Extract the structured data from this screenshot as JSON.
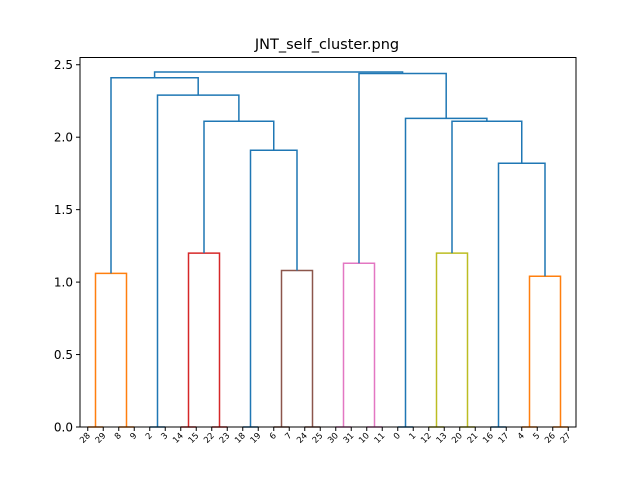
{
  "chart_data": {
    "type": "dendrogram",
    "title": "JNT_self_cluster.png",
    "xlabel": "",
    "ylabel": "",
    "ylim": [
      0,
      2.55
    ],
    "yticks": [
      0.0,
      0.5,
      1.0,
      1.5,
      2.0,
      2.5
    ],
    "ytick_labels": [
      "0.0",
      "0.5",
      "1.0",
      "1.5",
      "2.0",
      "2.5"
    ],
    "leaves": [
      "28",
      "29",
      "8",
      "9",
      "2",
      "3",
      "14",
      "15",
      "22",
      "23",
      "18",
      "19",
      "6",
      "7",
      "24",
      "25",
      "30",
      "31",
      "10",
      "11",
      "0",
      "1",
      "12",
      "13",
      "20",
      "21",
      "16",
      "17",
      "4",
      "5",
      "26",
      "27"
    ],
    "colors": {
      "above_threshold": "#1f77b4",
      "orange": "#ff7f0e",
      "red": "#d62728",
      "brown": "#8c564b",
      "pink": "#e377c2",
      "olive": "#bcbd22"
    },
    "links": [
      {
        "span": [
          0.0,
          1.0
        ],
        "heights": [
          0.0,
          0.0
        ],
        "height": 0.0,
        "color": "orange"
      },
      {
        "span": [
          2.0,
          3.0
        ],
        "heights": [
          0.0,
          0.0
        ],
        "height": 0.0,
        "color": "orange"
      },
      {
        "span": [
          0.5,
          2.5
        ],
        "heights": [
          0.0,
          0.0
        ],
        "height": 1.06,
        "color": "orange"
      },
      {
        "span": [
          4.0,
          5.0
        ],
        "heights": [
          0.0,
          0.0
        ],
        "height": 0.0,
        "color": "above_threshold"
      },
      {
        "span": [
          6.0,
          7.0
        ],
        "heights": [
          0.0,
          0.0
        ],
        "height": 0.0,
        "color": "red"
      },
      {
        "span": [
          8.0,
          9.0
        ],
        "heights": [
          0.0,
          0.0
        ],
        "height": 0.0,
        "color": "red"
      },
      {
        "span": [
          6.5,
          8.5
        ],
        "heights": [
          0.0,
          0.0
        ],
        "height": 1.2,
        "color": "red"
      },
      {
        "span": [
          10.0,
          11.0
        ],
        "heights": [
          0.0,
          0.0
        ],
        "height": 0.0,
        "color": "above_threshold"
      },
      {
        "span": [
          12.0,
          13.0
        ],
        "heights": [
          0.0,
          0.0
        ],
        "height": 0.0,
        "color": "brown"
      },
      {
        "span": [
          14.0,
          15.0
        ],
        "heights": [
          0.0,
          0.0
        ],
        "height": 0.0,
        "color": "brown"
      },
      {
        "span": [
          12.5,
          14.5
        ],
        "heights": [
          0.0,
          0.0
        ],
        "height": 1.08,
        "color": "brown"
      },
      {
        "span": [
          10.5,
          13.5
        ],
        "heights": [
          0.0,
          1.08
        ],
        "height": 1.91,
        "color": "above_threshold"
      },
      {
        "span": [
          7.5,
          12.0
        ],
        "heights": [
          1.2,
          1.91
        ],
        "height": 2.11,
        "color": "above_threshold"
      },
      {
        "span": [
          4.5,
          9.75
        ],
        "heights": [
          0.0,
          2.11
        ],
        "height": 2.29,
        "color": "above_threshold"
      },
      {
        "span": [
          1.5,
          7.125
        ],
        "heights": [
          1.06,
          2.29
        ],
        "height": 2.41,
        "color": "above_threshold"
      },
      {
        "span": [
          16.0,
          17.0
        ],
        "heights": [
          0.0,
          0.0
        ],
        "height": 0.0,
        "color": "pink"
      },
      {
        "span": [
          18.0,
          19.0
        ],
        "heights": [
          0.0,
          0.0
        ],
        "height": 0.0,
        "color": "pink"
      },
      {
        "span": [
          16.5,
          18.5
        ],
        "heights": [
          0.0,
          0.0
        ],
        "height": 1.13,
        "color": "pink"
      },
      {
        "span": [
          20.0,
          21.0
        ],
        "heights": [
          0.0,
          0.0
        ],
        "height": 0.0,
        "color": "above_threshold"
      },
      {
        "span": [
          22.0,
          23.0
        ],
        "heights": [
          0.0,
          0.0
        ],
        "height": 0.0,
        "color": "olive"
      },
      {
        "span": [
          24.0,
          25.0
        ],
        "heights": [
          0.0,
          0.0
        ],
        "height": 0.0,
        "color": "olive"
      },
      {
        "span": [
          22.5,
          24.5
        ],
        "heights": [
          0.0,
          0.0
        ],
        "height": 1.2,
        "color": "olive"
      },
      {
        "span": [
          26.0,
          27.0
        ],
        "heights": [
          0.0,
          0.0
        ],
        "height": 0.0,
        "color": "above_threshold"
      },
      {
        "span": [
          28.0,
          29.0
        ],
        "heights": [
          0.0,
          0.0
        ],
        "height": 0.0,
        "color": "orange"
      },
      {
        "span": [
          30.0,
          31.0
        ],
        "heights": [
          0.0,
          0.0
        ],
        "height": 0.0,
        "color": "orange"
      },
      {
        "span": [
          28.5,
          30.5
        ],
        "heights": [
          0.0,
          0.0
        ],
        "height": 1.04,
        "color": "orange"
      },
      {
        "span": [
          26.5,
          29.5
        ],
        "heights": [
          0.0,
          1.04
        ],
        "height": 1.82,
        "color": "above_threshold"
      },
      {
        "span": [
          23.5,
          28.0
        ],
        "heights": [
          1.2,
          1.82
        ],
        "height": 2.11,
        "color": "above_threshold"
      },
      {
        "span": [
          20.5,
          25.75
        ],
        "heights": [
          0.0,
          2.11
        ],
        "height": 2.13,
        "color": "above_threshold"
      },
      {
        "span": [
          17.5,
          23.125
        ],
        "heights": [
          1.13,
          2.13
        ],
        "height": 2.44,
        "color": "above_threshold"
      },
      {
        "span": [
          4.3125,
          20.3125
        ],
        "heights": [
          2.41,
          2.44
        ],
        "height": 2.45,
        "color": "above_threshold"
      }
    ]
  }
}
